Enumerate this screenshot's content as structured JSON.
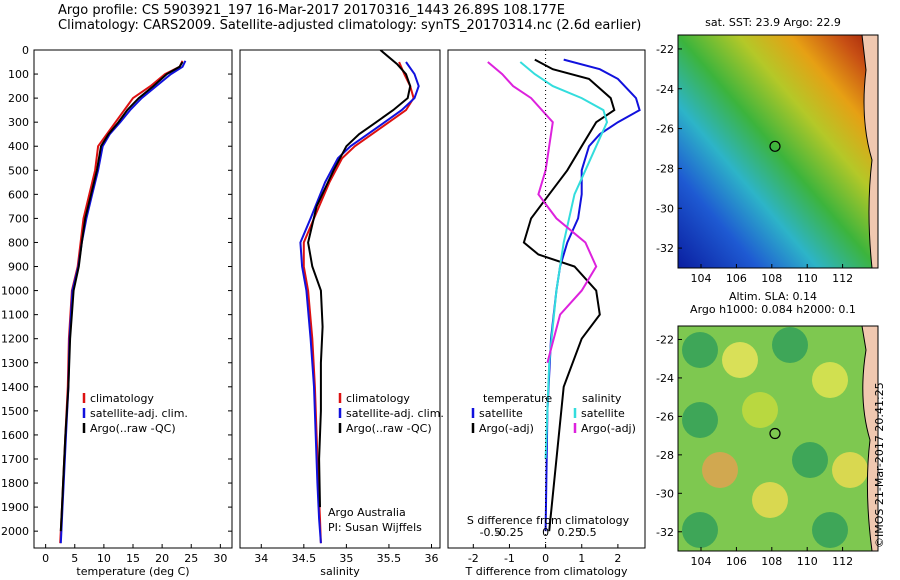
{
  "header": {
    "line1": "Argo profile: CS 5903921_197 16-Mar-2017 20170316_1443 26.89S 108.177E",
    "line2": "Climatology: CARS2009. Satellite-adjusted climatology: synTS_20170314.nc (2.6d earlier)"
  },
  "colors": {
    "climatology": "#dd1111",
    "satellite": "#1111dd",
    "argo": "#000000",
    "sal_sat": "#33dddd",
    "sal_argo": "#dd22dd",
    "marker": "#2e8b2e"
  },
  "chart_data": [
    {
      "type": "line",
      "name": "temperature-profile",
      "xlabel": "temperature (deg C)",
      "ylabel": "",
      "xlim": [
        -2,
        32
      ],
      "ylim": [
        2070,
        0
      ],
      "xticks": [
        0,
        5,
        10,
        15,
        20,
        25,
        30
      ],
      "yticks": [
        0,
        100,
        200,
        300,
        400,
        500,
        600,
        700,
        800,
        900,
        1000,
        1100,
        1200,
        1300,
        1400,
        1500,
        1600,
        1700,
        1800,
        1900,
        2000
      ],
      "legend": [
        "climatology",
        "satellite-adj. clim.",
        "Argo(..raw -QC)"
      ],
      "series": [
        {
          "name": "climatology",
          "color": "#dd1111",
          "x": [
            23.5,
            23.0,
            20.5,
            18.0,
            15.0,
            13.5,
            12.0,
            10.5,
            9.0,
            8.5,
            7.5,
            6.5,
            6.0,
            5.5,
            4.5,
            4.0,
            3.8,
            3.4,
            3.0,
            2.8,
            2.6,
            2.5
          ],
          "y": [
            45,
            70,
            100,
            150,
            200,
            250,
            300,
            350,
            400,
            500,
            600,
            700,
            800,
            900,
            1000,
            1200,
            1400,
            1600,
            1800,
            1900,
            2000,
            2050
          ]
        },
        {
          "name": "satellite-adj. clim.",
          "color": "#1111dd",
          "x": [
            24.0,
            23.5,
            21.5,
            19.0,
            16.5,
            14.5,
            12.8,
            11.0,
            9.8,
            9.0,
            8.0,
            7.0,
            6.2,
            5.6,
            4.6,
            4.1,
            3.9,
            3.5,
            3.1,
            2.9,
            2.7,
            2.6
          ],
          "y": [
            45,
            70,
            100,
            150,
            200,
            250,
            300,
            350,
            400,
            500,
            600,
            700,
            800,
            900,
            1000,
            1200,
            1400,
            1600,
            1800,
            1900,
            2000,
            2050
          ]
        },
        {
          "name": "Argo(..raw -QC)",
          "color": "#000000",
          "x": [
            23.5,
            23.0,
            20.8,
            18.5,
            16.0,
            14.0,
            12.5,
            10.8,
            9.5,
            8.8,
            7.8,
            6.8,
            6.2,
            5.7,
            4.8,
            4.2,
            3.9,
            3.4,
            3.0,
            2.8,
            2.6
          ],
          "y": [
            50,
            70,
            100,
            150,
            200,
            250,
            300,
            350,
            400,
            500,
            600,
            700,
            800,
            900,
            1000,
            1200,
            1400,
            1600,
            1800,
            1900,
            2000
          ]
        }
      ]
    },
    {
      "type": "line",
      "name": "salinity-profile",
      "xlabel": "salinity",
      "xlim": [
        33.75,
        36.1
      ],
      "ylim": [
        2070,
        0
      ],
      "xticks": [
        34,
        34.5,
        35,
        35.5,
        36
      ],
      "xticklabels": [
        "34",
        "34.5",
        "35",
        "35.5",
        "36"
      ],
      "legend": [
        "climatology",
        "satellite-adj. clim.",
        "Argo(..raw -QC)"
      ],
      "annotations": [
        "Argo Australia",
        "PI: Susan Wijffels"
      ],
      "series": [
        {
          "name": "climatology",
          "color": "#dd1111",
          "x": [
            35.62,
            35.68,
            35.75,
            35.79,
            35.7,
            35.5,
            35.3,
            35.1,
            34.95,
            34.8,
            34.62,
            34.5,
            34.5,
            34.55,
            34.6,
            34.63,
            34.65,
            34.67,
            34.69,
            34.7
          ],
          "y": [
            50,
            100,
            150,
            200,
            250,
            300,
            350,
            400,
            450,
            550,
            700,
            800,
            900,
            1000,
            1200,
            1400,
            1600,
            1800,
            1950,
            2050
          ]
        },
        {
          "name": "satellite-adj. clim.",
          "color": "#1111dd",
          "x": [
            35.7,
            35.8,
            35.85,
            35.8,
            35.65,
            35.45,
            35.25,
            35.05,
            34.9,
            34.75,
            34.58,
            34.46,
            34.48,
            34.53,
            34.58,
            34.62,
            34.64,
            34.66,
            34.68,
            34.7
          ],
          "y": [
            50,
            100,
            150,
            200,
            250,
            300,
            350,
            400,
            450,
            550,
            700,
            800,
            900,
            1000,
            1200,
            1400,
            1600,
            1800,
            1950,
            2050
          ]
        },
        {
          "name": "Argo(..raw -QC)",
          "color": "#000000",
          "x": [
            35.4,
            35.6,
            35.7,
            35.75,
            35.72,
            35.55,
            35.35,
            35.15,
            35.0,
            34.85,
            34.65,
            34.55,
            34.6,
            34.7,
            34.72,
            34.7,
            34.7,
            34.68,
            34.69
          ],
          "y": [
            0,
            60,
            100,
            150,
            200,
            250,
            300,
            350,
            400,
            500,
            650,
            800,
            900,
            1000,
            1150,
            1300,
            1500,
            1700,
            1900
          ]
        }
      ]
    },
    {
      "type": "line",
      "name": "difference-profile",
      "xlabel": "T difference from climatology",
      "xlabel_top": "S difference from climatology",
      "xlim": [
        -2.7,
        2.75
      ],
      "ylim": [
        2070,
        0
      ],
      "xticks": [
        -2,
        -1,
        0,
        1,
        2
      ],
      "sticks": [
        "-0.5",
        "-0.25",
        "0",
        "0.25",
        "0.5"
      ],
      "legend_left_title": "temperature",
      "legend_right_title": "salinity",
      "legend": [
        "satellite",
        "Argo(-adj)",
        "satellite",
        "Argo(-adj)"
      ],
      "series": [
        {
          "name": "T satellite",
          "color": "#1111dd",
          "x": [
            0.5,
            1.5,
            2.0,
            2.5,
            2.6,
            2.0,
            1.5,
            1.2,
            1.0,
            1.0,
            0.9,
            0.6,
            0.4,
            0.3,
            0.15,
            0.05,
            0.0
          ],
          "y": [
            40,
            80,
            120,
            200,
            250,
            300,
            350,
            400,
            500,
            600,
            700,
            800,
            900,
            1000,
            1200,
            1500,
            2000
          ]
        },
        {
          "name": "T Argo(-adj)",
          "color": "#000000",
          "x": [
            -0.3,
            0.2,
            1.2,
            1.8,
            1.9,
            1.4,
            1.0,
            0.6,
            0.1,
            -0.4,
            -0.6,
            -0.2,
            0.8,
            1.4,
            1.5,
            1.0,
            0.5,
            0.1
          ],
          "y": [
            40,
            80,
            120,
            200,
            250,
            300,
            400,
            500,
            600,
            700,
            800,
            850,
            900,
            1000,
            1100,
            1200,
            1400,
            2000
          ]
        },
        {
          "name": "S satellite",
          "color": "#33dddd",
          "x": [
            -0.7,
            -0.3,
            0.2,
            1.0,
            1.6,
            1.7,
            1.4,
            1.1,
            0.8,
            0.5,
            0.3,
            0.1,
            0.0
          ],
          "y": [
            50,
            100,
            150,
            200,
            250,
            300,
            400,
            500,
            600,
            800,
            1000,
            1300,
            1700
          ]
        },
        {
          "name": "S Argo(-adj)",
          "color": "#dd22dd",
          "x": [
            -1.6,
            -1.2,
            -0.9,
            -0.4,
            0.2,
            0.1,
            0.0,
            -0.2,
            0.3,
            1.1,
            1.4,
            1.0,
            0.4,
            0.05
          ],
          "y": [
            50,
            100,
            150,
            200,
            300,
            400,
            500,
            600,
            700,
            800,
            900,
            1000,
            1100,
            1300
          ]
        }
      ]
    },
    {
      "type": "heatmap",
      "name": "sst-map",
      "title": "sat. SST: 23.9 Argo: 22.9",
      "xlim": [
        102.7,
        114
      ],
      "ylim": [
        -33,
        -21.3
      ],
      "xticks": [
        104,
        106,
        108,
        110,
        112
      ],
      "yticks": [
        -22,
        -24,
        -26,
        -28,
        -30,
        -32
      ],
      "marker": [
        108.18,
        -26.89
      ]
    },
    {
      "type": "heatmap",
      "name": "sla-map",
      "title": "Altim. SLA: 0.14",
      "subtitle": "Argo h1000: 0.084 h2000: 0.1",
      "xlim": [
        102.7,
        114
      ],
      "ylim": [
        -33,
        -21.3
      ],
      "xticks": [
        104,
        106,
        108,
        110,
        112
      ],
      "yticks": [
        -22,
        -24,
        -26,
        -28,
        -30,
        -32
      ],
      "marker": [
        108.18,
        -26.89
      ]
    }
  ],
  "credit": "©IMOS 21-Mar-2017 20:41:25"
}
